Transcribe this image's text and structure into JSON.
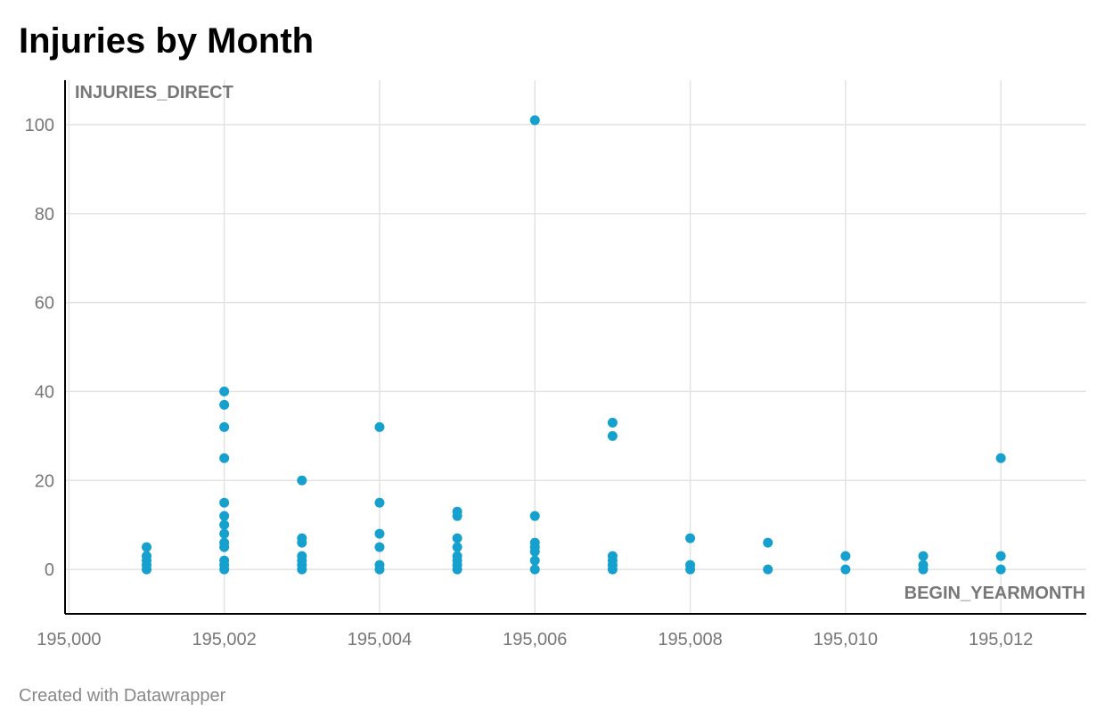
{
  "title": "Injuries by Month",
  "footer": "Created with Datawrapper",
  "colors": {
    "point": "#16a0cd",
    "grid": "#e3e3e3",
    "axis": "#000000",
    "label": "#777777"
  },
  "chart_data": {
    "type": "scatter",
    "title": "Injuries by Month",
    "xlabel": "BEGIN_YEARMONTH",
    "ylabel": "INJURIES_DIRECT",
    "xlim": [
      194999.95,
      195013.1
    ],
    "ylim": [
      -10,
      110
    ],
    "xticks": [
      195000,
      195002,
      195004,
      195006,
      195008,
      195010,
      195012
    ],
    "xtick_labels": [
      "195,000",
      "195,002",
      "195,004",
      "195,006",
      "195,008",
      "195,010",
      "195,012"
    ],
    "yticks": [
      0,
      20,
      40,
      60,
      80,
      100
    ],
    "ytick_labels": [
      "0",
      "20",
      "40",
      "60",
      "80",
      "100"
    ],
    "grid": true,
    "points": [
      {
        "x": 195001,
        "y": 0
      },
      {
        "x": 195001,
        "y": 1
      },
      {
        "x": 195001,
        "y": 2
      },
      {
        "x": 195001,
        "y": 3
      },
      {
        "x": 195001,
        "y": 5
      },
      {
        "x": 195002,
        "y": 0
      },
      {
        "x": 195002,
        "y": 1
      },
      {
        "x": 195002,
        "y": 2
      },
      {
        "x": 195002,
        "y": 5
      },
      {
        "x": 195002,
        "y": 6
      },
      {
        "x": 195002,
        "y": 8
      },
      {
        "x": 195002,
        "y": 10
      },
      {
        "x": 195002,
        "y": 12
      },
      {
        "x": 195002,
        "y": 15
      },
      {
        "x": 195002,
        "y": 25
      },
      {
        "x": 195002,
        "y": 32
      },
      {
        "x": 195002,
        "y": 37
      },
      {
        "x": 195002,
        "y": 40
      },
      {
        "x": 195003,
        "y": 0
      },
      {
        "x": 195003,
        "y": 1
      },
      {
        "x": 195003,
        "y": 2
      },
      {
        "x": 195003,
        "y": 3
      },
      {
        "x": 195003,
        "y": 6
      },
      {
        "x": 195003,
        "y": 7
      },
      {
        "x": 195003,
        "y": 20
      },
      {
        "x": 195004,
        "y": 0
      },
      {
        "x": 195004,
        "y": 1
      },
      {
        "x": 195004,
        "y": 5
      },
      {
        "x": 195004,
        "y": 8
      },
      {
        "x": 195004,
        "y": 15
      },
      {
        "x": 195004,
        "y": 32
      },
      {
        "x": 195005,
        "y": 0
      },
      {
        "x": 195005,
        "y": 1
      },
      {
        "x": 195005,
        "y": 2
      },
      {
        "x": 195005,
        "y": 3
      },
      {
        "x": 195005,
        "y": 5
      },
      {
        "x": 195005,
        "y": 7
      },
      {
        "x": 195005,
        "y": 12
      },
      {
        "x": 195005,
        "y": 13
      },
      {
        "x": 195006,
        "y": 0
      },
      {
        "x": 195006,
        "y": 2
      },
      {
        "x": 195006,
        "y": 4
      },
      {
        "x": 195006,
        "y": 5
      },
      {
        "x": 195006,
        "y": 6
      },
      {
        "x": 195006,
        "y": 12
      },
      {
        "x": 195006,
        "y": 101
      },
      {
        "x": 195007,
        "y": 0
      },
      {
        "x": 195007,
        "y": 1
      },
      {
        "x": 195007,
        "y": 2
      },
      {
        "x": 195007,
        "y": 3
      },
      {
        "x": 195007,
        "y": 30
      },
      {
        "x": 195007,
        "y": 33
      },
      {
        "x": 195008,
        "y": 0
      },
      {
        "x": 195008,
        "y": 1
      },
      {
        "x": 195008,
        "y": 7
      },
      {
        "x": 195009,
        "y": 0
      },
      {
        "x": 195009,
        "y": 6
      },
      {
        "x": 195010,
        "y": 0
      },
      {
        "x": 195010,
        "y": 3
      },
      {
        "x": 195011,
        "y": 0
      },
      {
        "x": 195011,
        "y": 1
      },
      {
        "x": 195011,
        "y": 3
      },
      {
        "x": 195012,
        "y": 0
      },
      {
        "x": 195012,
        "y": 3
      },
      {
        "x": 195012,
        "y": 25
      }
    ]
  }
}
